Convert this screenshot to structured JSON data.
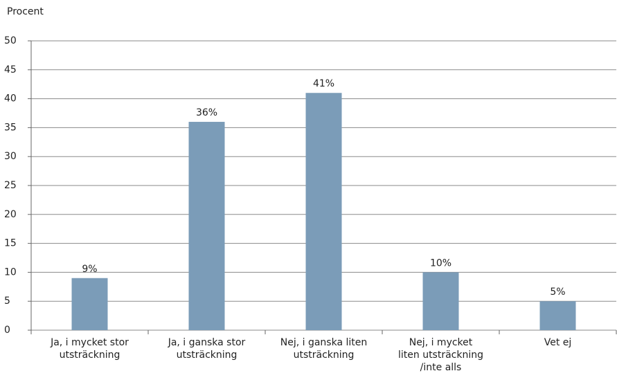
{
  "chart_data": {
    "type": "bar",
    "y_label": "Procent",
    "categories": [
      "Ja, i mycket stor\nutsträckning",
      "Ja, i ganska stor\nutsträckning",
      "Nej, i ganska liten\nutsträckning",
      "Nej, i mycket\nliten utsträckning\n/inte alls",
      "Vet ej"
    ],
    "values": [
      9,
      36,
      41,
      10,
      5
    ],
    "value_labels": [
      "9%",
      "36%",
      "41%",
      "10%",
      "5%"
    ],
    "color": "#7b9cb8",
    "ylim": [
      0,
      50
    ],
    "yticks": [
      0,
      5,
      10,
      15,
      20,
      25,
      30,
      35,
      40,
      45,
      50
    ],
    "grid": true
  }
}
